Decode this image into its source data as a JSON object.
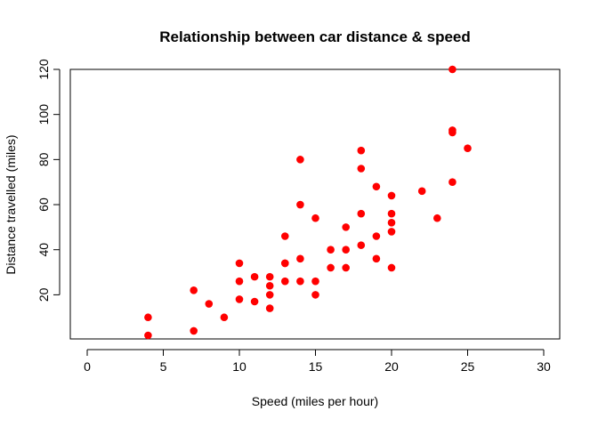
{
  "chart_data": {
    "type": "scatter",
    "title": "Relationship between car distance & speed",
    "xlabel": "Speed (miles per hour)",
    "ylabel": "Distance travelled (miles)",
    "xlim": [
      0,
      30
    ],
    "ylim": [
      2,
      120
    ],
    "x_ticks": [
      0,
      5,
      10,
      15,
      20,
      25,
      30
    ],
    "y_ticks": [
      20,
      40,
      60,
      80,
      100,
      120
    ],
    "grid": false,
    "point_color": "#ff0000",
    "points": [
      {
        "x": 4,
        "y": 2
      },
      {
        "x": 4,
        "y": 10
      },
      {
        "x": 7,
        "y": 4
      },
      {
        "x": 7,
        "y": 22
      },
      {
        "x": 8,
        "y": 16
      },
      {
        "x": 9,
        "y": 10
      },
      {
        "x": 10,
        "y": 18
      },
      {
        "x": 10,
        "y": 26
      },
      {
        "x": 10,
        "y": 34
      },
      {
        "x": 11,
        "y": 17
      },
      {
        "x": 11,
        "y": 28
      },
      {
        "x": 12,
        "y": 14
      },
      {
        "x": 12,
        "y": 20
      },
      {
        "x": 12,
        "y": 24
      },
      {
        "x": 12,
        "y": 28
      },
      {
        "x": 13,
        "y": 26
      },
      {
        "x": 13,
        "y": 34
      },
      {
        "x": 13,
        "y": 34
      },
      {
        "x": 13,
        "y": 46
      },
      {
        "x": 14,
        "y": 26
      },
      {
        "x": 14,
        "y": 36
      },
      {
        "x": 14,
        "y": 60
      },
      {
        "x": 14,
        "y": 80
      },
      {
        "x": 15,
        "y": 20
      },
      {
        "x": 15,
        "y": 26
      },
      {
        "x": 15,
        "y": 54
      },
      {
        "x": 16,
        "y": 32
      },
      {
        "x": 16,
        "y": 40
      },
      {
        "x": 17,
        "y": 32
      },
      {
        "x": 17,
        "y": 40
      },
      {
        "x": 17,
        "y": 50
      },
      {
        "x": 18,
        "y": 42
      },
      {
        "x": 18,
        "y": 56
      },
      {
        "x": 18,
        "y": 76
      },
      {
        "x": 18,
        "y": 84
      },
      {
        "x": 19,
        "y": 36
      },
      {
        "x": 19,
        "y": 46
      },
      {
        "x": 19,
        "y": 68
      },
      {
        "x": 20,
        "y": 32
      },
      {
        "x": 20,
        "y": 48
      },
      {
        "x": 20,
        "y": 52
      },
      {
        "x": 20,
        "y": 56
      },
      {
        "x": 20,
        "y": 64
      },
      {
        "x": 22,
        "y": 66
      },
      {
        "x": 23,
        "y": 54
      },
      {
        "x": 24,
        "y": 70
      },
      {
        "x": 24,
        "y": 92
      },
      {
        "x": 24,
        "y": 93
      },
      {
        "x": 24,
        "y": 120
      },
      {
        "x": 25,
        "y": 85
      }
    ]
  }
}
